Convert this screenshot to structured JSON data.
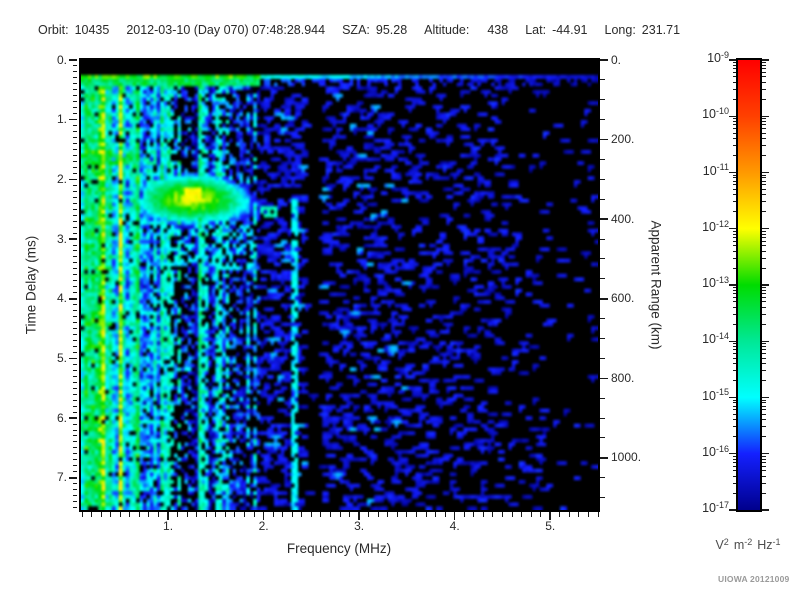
{
  "header": {
    "fields": [
      {
        "label": "Orbit:",
        "value": "10435"
      },
      {
        "label": "",
        "value": "2012-03-10 (Day 070) 07:48:28.944"
      },
      {
        "label": "SZA:",
        "value": "95.28"
      },
      {
        "label": "Altitude:",
        "value": "438",
        "wide_gap": true
      },
      {
        "label": "Lat:",
        "value": "-44.91"
      },
      {
        "label": "Long:",
        "value": "231.71"
      }
    ]
  },
  "footer": {
    "credit": "UIOWA 20121009"
  },
  "chart_data": {
    "type": "heatmap",
    "title": "",
    "description": "AIS radar sounder ionogram spectrogram: spectral density vs frequency and time delay",
    "axes": {
      "x": {
        "label": "Frequency (MHz)",
        "min": 0.089,
        "max": 5.5,
        "major": [
          1,
          2,
          3,
          4,
          5
        ],
        "major_labels": [
          "1.",
          "2.",
          "3.",
          "4.",
          "5."
        ],
        "minor_step": 0.1
      },
      "y_left": {
        "label": "Time Delay (ms)",
        "min": 0,
        "max": 7.54,
        "major": [
          0,
          1,
          2,
          3,
          4,
          5,
          6,
          7
        ],
        "major_labels": [
          "0.",
          "1.",
          "2.",
          "3.",
          "4.",
          "5.",
          "6.",
          "7."
        ],
        "minor_step": 0.1
      },
      "y_right": {
        "label": "Apparent Range (km)",
        "min": 0,
        "max": 1131,
        "major": [
          0,
          200,
          400,
          600,
          800,
          1000
        ],
        "major_labels": [
          "0.",
          "200.",
          "400.",
          "600.",
          "800.",
          "1000."
        ],
        "minor_step": 50
      }
    },
    "colorbar": {
      "scale": "log",
      "max_exponent": -9,
      "min_exponent": -17,
      "decades": [
        -9,
        -10,
        -11,
        -12,
        -13,
        -14,
        -15,
        -16,
        -17
      ],
      "unit_parts": [
        {
          "t": "V"
        },
        {
          "t": "2",
          "sup": true
        },
        {
          "t": "m",
          "sp": true
        },
        {
          "t": "-2",
          "sup": true
        },
        {
          "t": "Hz",
          "sp": true
        },
        {
          "t": "-1",
          "sup": true
        }
      ]
    },
    "colormap": [
      {
        "e": -17.5,
        "c": "#000000"
      },
      {
        "e": -17.0,
        "c": "#00008c"
      },
      {
        "e": -16.0,
        "c": "#1420ff"
      },
      {
        "e": -15.0,
        "c": "#00ffff"
      },
      {
        "e": -14.0,
        "c": "#00e896"
      },
      {
        "e": -13.0,
        "c": "#00dc00"
      },
      {
        "e": -12.0,
        "c": "#ffff00"
      },
      {
        "e": -11.0,
        "c": "#ff9900"
      },
      {
        "e": -10.0,
        "c": "#ff4000"
      },
      {
        "e": -9.0,
        "c": "#ff0000"
      }
    ],
    "features": {
      "floor_exponent": -17.5,
      "top_black_band_ms": [
        0,
        0.25
      ],
      "turn_on_line_ms": [
        0.25,
        0.43
      ],
      "noise_max_f": 1.95,
      "noise_bands": [
        {
          "f": [
            0.089,
            0.18
          ],
          "base": -13.9,
          "drop": 0.04,
          "yellow_prob": 0.1
        },
        {
          "f": [
            0.18,
            0.42
          ],
          "base": -13.7,
          "drop": 0.05,
          "yellow_prob": 0.3
        },
        {
          "f": [
            0.42,
            0.75
          ],
          "base": -14.4,
          "drop": 0.07,
          "yellow_prob": 0.06
        },
        {
          "f": [
            0.75,
            1.04
          ],
          "base": -14.9,
          "drop": 0.1,
          "yellow_prob": 0.02
        },
        {
          "f": [
            1.04,
            1.27
          ],
          "base": -15.6,
          "drop": 0.45,
          "yellow_prob": 0
        },
        {
          "f": [
            1.27,
            1.34
          ],
          "base": -14.1,
          "drop": 0.05,
          "yellow_prob": 0
        },
        {
          "f": [
            1.34,
            1.62
          ],
          "base": -15.1,
          "drop": 0.22,
          "yellow_prob": 0
        },
        {
          "f": [
            1.62,
            1.95
          ],
          "base": -15.8,
          "drop": 0.42,
          "yellow_prob": 0
        }
      ],
      "yellow_stripe_exponent": -12.4,
      "speckle": {
        "f_start": 1.95,
        "p_start": 0.22,
        "p_end": 0.07,
        "exponent": -16.25,
        "bright_exponent": -15.3,
        "bright_prob": 0.06
      },
      "dark_lanes": [
        {
          "f": [
            2.42,
            2.63
          ],
          "factor": 0.02
        },
        {
          "f": [
            4.6,
            4.8
          ],
          "factor": 0.55
        },
        {
          "f": [
            4.95,
            5.35
          ],
          "factor": 0.4
        }
      ],
      "cyan_line": {
        "f": [
          2.3,
          2.37
        ],
        "t_min": 2.3,
        "exponent": -15.0
      },
      "echo": {
        "f": [
          0.75,
          2.0
        ],
        "peak_f": 1.25,
        "delay_ms": 2.33,
        "sag": 0.18,
        "sigma_ms": 0.17,
        "peak_exponent": -12.3,
        "falloff": 2.2,
        "hotspot": {
          "f": [
            1.18,
            1.34
          ],
          "exponent": -12.0
        },
        "tail_blob": {
          "f": [
            1.95,
            2.13
          ],
          "t": [
            2.42,
            2.66
          ],
          "exponent": -14.3
        },
        "cusp": {
          "f": [
            0.76,
            0.9
          ],
          "t": [
            1.5,
            2.3
          ],
          "exponent": -14.3
        },
        "under_speckle": {
          "f": [
            0.95,
            1.9
          ],
          "exponent": -15.1
        }
      },
      "low_f_line": {
        "f": [
          0.089,
          0.62
        ],
        "ext_f": [
          0.62,
          1.0
        ],
        "t": [
          1.55,
          1.78
        ],
        "exponent": -13.4
      }
    }
  }
}
